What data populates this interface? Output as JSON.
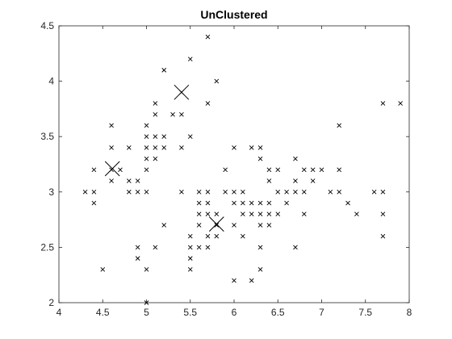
{
  "chart_data": {
    "type": "scatter",
    "title": "UnClustered",
    "xlabel": "",
    "ylabel": "",
    "xlim": [
      4,
      8
    ],
    "ylim": [
      2,
      4.5
    ],
    "xticks": [
      "4",
      "4.5",
      "5",
      "5.5",
      "6",
      "6.5",
      "7",
      "7.5",
      "8"
    ],
    "yticks": [
      "2",
      "2.5",
      "3",
      "3.5",
      "4",
      "4.5"
    ],
    "grid": false,
    "legend": "none",
    "marker_color": "#000000",
    "axes_color": "#262626",
    "series": [
      {
        "marker": "x-small",
        "points": [
          [
            4.3,
            3.0
          ],
          [
            4.4,
            3.0
          ],
          [
            4.4,
            2.9
          ],
          [
            4.4,
            3.2
          ],
          [
            4.5,
            2.3
          ],
          [
            4.6,
            3.1
          ],
          [
            4.6,
            3.4
          ],
          [
            4.6,
            3.6
          ],
          [
            4.6,
            3.2
          ],
          [
            4.7,
            3.2
          ],
          [
            4.8,
            3.0
          ],
          [
            4.8,
            3.4
          ],
          [
            4.8,
            3.1
          ],
          [
            4.9,
            3.0
          ],
          [
            4.9,
            3.1
          ],
          [
            4.9,
            2.4
          ],
          [
            4.9,
            2.5
          ],
          [
            5.0,
            3.6
          ],
          [
            5.0,
            3.4
          ],
          [
            5.0,
            3.0
          ],
          [
            5.0,
            3.3
          ],
          [
            5.0,
            3.5
          ],
          [
            5.0,
            3.2
          ],
          [
            5.0,
            2.3
          ],
          [
            5.0,
            2.0
          ],
          [
            5.1,
            3.5
          ],
          [
            5.1,
            3.8
          ],
          [
            5.1,
            3.7
          ],
          [
            5.1,
            3.3
          ],
          [
            5.1,
            3.4
          ],
          [
            5.1,
            2.5
          ],
          [
            5.2,
            3.5
          ],
          [
            5.2,
            3.4
          ],
          [
            5.2,
            4.1
          ],
          [
            5.2,
            2.7
          ],
          [
            5.3,
            3.7
          ],
          [
            5.4,
            3.9
          ],
          [
            5.4,
            3.7
          ],
          [
            5.4,
            3.4
          ],
          [
            5.4,
            3.0
          ],
          [
            5.5,
            4.2
          ],
          [
            5.5,
            3.5
          ],
          [
            5.5,
            2.3
          ],
          [
            5.5,
            2.4
          ],
          [
            5.5,
            2.5
          ],
          [
            5.5,
            2.6
          ],
          [
            5.6,
            3.0
          ],
          [
            5.6,
            2.9
          ],
          [
            5.6,
            2.7
          ],
          [
            5.6,
            2.5
          ],
          [
            5.6,
            2.8
          ],
          [
            5.7,
            4.4
          ],
          [
            5.7,
            3.8
          ],
          [
            5.7,
            3.0
          ],
          [
            5.7,
            2.8
          ],
          [
            5.7,
            2.6
          ],
          [
            5.7,
            2.5
          ],
          [
            5.7,
            2.9
          ],
          [
            5.8,
            4.0
          ],
          [
            5.8,
            2.7
          ],
          [
            5.8,
            2.6
          ],
          [
            5.8,
            2.8
          ],
          [
            5.9,
            3.0
          ],
          [
            5.9,
            3.2
          ],
          [
            6.0,
            3.4
          ],
          [
            6.0,
            2.2
          ],
          [
            6.0,
            2.9
          ],
          [
            6.0,
            2.7
          ],
          [
            6.0,
            3.0
          ],
          [
            6.1,
            2.8
          ],
          [
            6.1,
            2.9
          ],
          [
            6.1,
            3.0
          ],
          [
            6.1,
            2.6
          ],
          [
            6.2,
            3.4
          ],
          [
            6.2,
            2.2
          ],
          [
            6.2,
            2.9
          ],
          [
            6.2,
            2.8
          ],
          [
            6.3,
            3.3
          ],
          [
            6.3,
            2.3
          ],
          [
            6.3,
            2.5
          ],
          [
            6.3,
            2.9
          ],
          [
            6.3,
            3.4
          ],
          [
            6.3,
            2.8
          ],
          [
            6.3,
            2.7
          ],
          [
            6.4,
            3.2
          ],
          [
            6.4,
            2.9
          ],
          [
            6.4,
            2.7
          ],
          [
            6.4,
            2.8
          ],
          [
            6.4,
            3.1
          ],
          [
            6.5,
            2.8
          ],
          [
            6.5,
            3.0
          ],
          [
            6.5,
            3.2
          ],
          [
            6.6,
            2.9
          ],
          [
            6.6,
            3.0
          ],
          [
            6.7,
            3.1
          ],
          [
            6.7,
            3.0
          ],
          [
            6.7,
            2.5
          ],
          [
            6.7,
            3.3
          ],
          [
            6.8,
            2.8
          ],
          [
            6.8,
            3.0
          ],
          [
            6.8,
            3.2
          ],
          [
            6.9,
            3.1
          ],
          [
            6.9,
            3.2
          ],
          [
            7.0,
            3.2
          ],
          [
            7.1,
            3.0
          ],
          [
            7.2,
            3.6
          ],
          [
            7.2,
            3.2
          ],
          [
            7.2,
            3.0
          ],
          [
            7.3,
            2.9
          ],
          [
            7.4,
            2.8
          ],
          [
            7.6,
            3.0
          ],
          [
            7.7,
            3.8
          ],
          [
            7.7,
            2.6
          ],
          [
            7.7,
            2.8
          ],
          [
            7.7,
            3.0
          ],
          [
            7.9,
            3.8
          ]
        ]
      },
      {
        "marker": "x-large",
        "points": [
          [
            4.61,
            3.21
          ],
          [
            5.4,
            3.9
          ],
          [
            5.8,
            2.71
          ]
        ]
      }
    ]
  }
}
